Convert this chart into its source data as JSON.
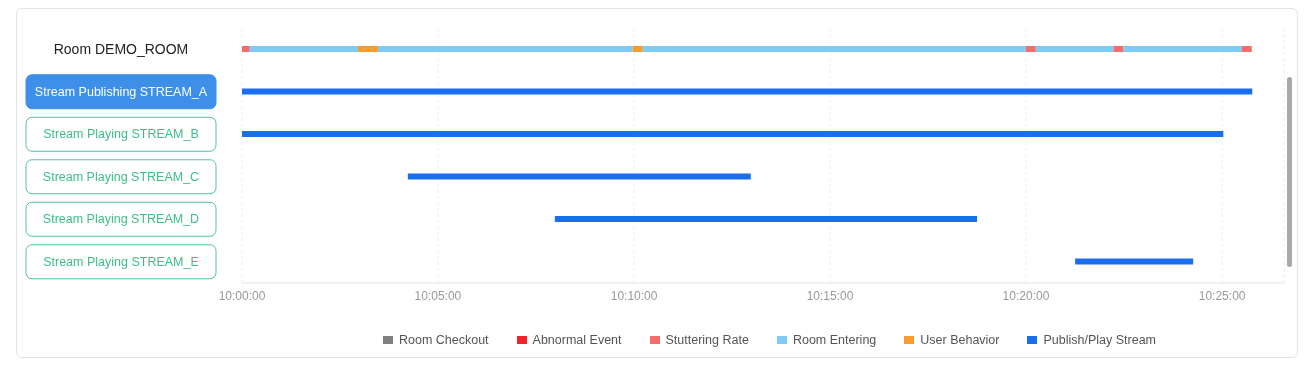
{
  "chart_data": {
    "type": "bar",
    "orientation": "horizontal",
    "categories": [
      "Room DEMO_ROOM",
      "Stream Publishing STREAM_A",
      "Stream Playing STREAM_B",
      "Stream Playing STREAM_C",
      "Stream Playing STREAM_D",
      "Stream Playing STREAM_E"
    ],
    "series": [
      {
        "name": "Room Checkout",
        "color": "#808080",
        "values": [
          null,
          null,
          null,
          null,
          null,
          null
        ]
      },
      {
        "name": "Abnormal Event",
        "color": "#f5222d",
        "values": [
          null,
          null,
          null,
          null,
          null,
          null
        ]
      },
      {
        "name": "Stuttering Rate",
        "color": "#f56c6c",
        "base": [
          10,
          null,
          null,
          null,
          null,
          null
        ],
        "values": [
          0.0033,
          null,
          null,
          null,
          null,
          null
        ]
      },
      {
        "name": "Room Entering",
        "color": "#7ecbf5",
        "base": [
          10.0033,
          null,
          null,
          null,
          null,
          null
        ],
        "values": [
          0.046,
          null,
          null,
          null,
          null,
          null
        ]
      },
      {
        "name": "User Behavior",
        "color": "#fa9d2e",
        "base": [
          10.0493,
          null,
          null,
          null,
          null,
          null
        ],
        "values": [
          0.0085,
          null,
          null,
          null,
          null,
          null
        ]
      },
      {
        "color": "#7ecbf5",
        "base": [
          10.0578,
          null,
          null,
          null,
          null,
          null
        ],
        "values": [
          0.1083,
          null,
          null,
          null,
          null,
          null
        ]
      },
      {
        "color": "#fa9d2e",
        "base": [
          10.1661,
          null,
          null,
          null,
          null,
          null
        ],
        "values": [
          0.0043,
          null,
          null,
          null,
          null,
          null
        ]
      },
      {
        "color": "#7ecbf5",
        "base": [
          10.1704,
          null,
          null,
          null,
          null,
          null
        ],
        "values": [
          0.1628,
          null,
          null,
          null,
          null,
          null
        ]
      },
      {
        "color": "#f56c6c",
        "base": [
          10.3332,
          null,
          null,
          null,
          null,
          null
        ],
        "values": [
          0.0043,
          null,
          null,
          null,
          null,
          null
        ]
      },
      {
        "color": "#7ecbf5",
        "base": [
          10.3375,
          null,
          null,
          null,
          null,
          null
        ],
        "values": [
          0.033,
          null,
          null,
          null,
          null,
          null
        ]
      },
      {
        "color": "#f56c6c",
        "base": [
          10.3705,
          null,
          null,
          null,
          null,
          null
        ],
        "values": [
          0.0043,
          null,
          null,
          null,
          null,
          null
        ]
      },
      {
        "color": "#7ecbf5",
        "base": [
          10.3748,
          null,
          null,
          null,
          null,
          null
        ],
        "values": [
          0.0502,
          null,
          null,
          null,
          null,
          null
        ]
      },
      {
        "color": "#f56c6c",
        "base": [
          10.425,
          null,
          null,
          null,
          null,
          null
        ],
        "values": [
          0.0043,
          null,
          null,
          null,
          null,
          null
        ]
      },
      {
        "name": "Publish/Play Stream",
        "color": "#1a6ff0",
        "base": [
          null,
          10,
          10,
          10.0705,
          10.133,
          10.3542
        ],
        "values": [
          null,
          0.4295,
          0.4172,
          0.1458,
          0.1795,
          0.0502
        ]
      }
    ],
    "xlim": [
      10,
      10.443
    ],
    "xticks": [
      {
        "value": 10,
        "label": "10:00:00"
      },
      {
        "value": 10.0833,
        "label": "10:05:00"
      },
      {
        "value": 10.1667,
        "label": "10:10:00"
      },
      {
        "value": 10.25,
        "label": "10:15:00"
      },
      {
        "value": 10.3333,
        "label": "10:20:00"
      },
      {
        "value": 10.4167,
        "label": "10:25:00"
      }
    ],
    "grid": "x",
    "legend": "bottom"
  }
}
